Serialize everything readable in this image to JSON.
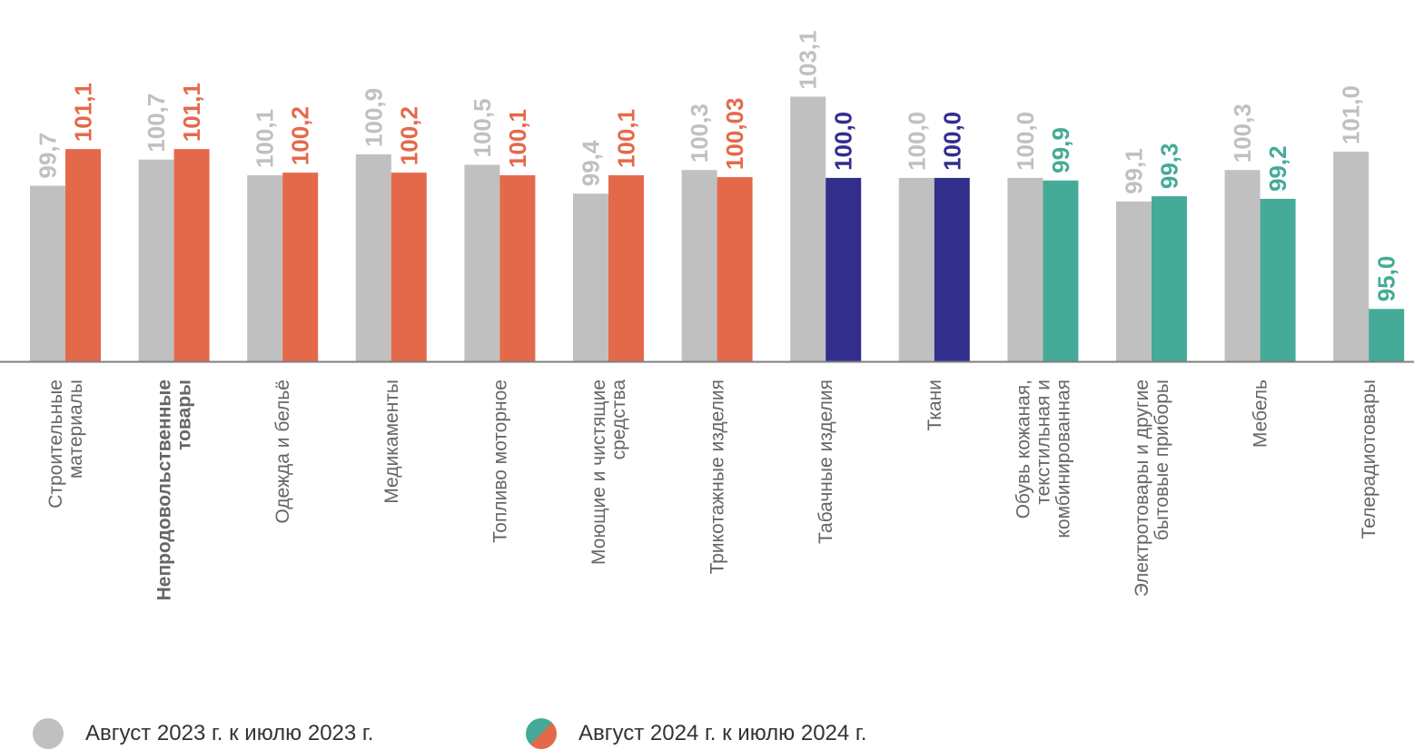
{
  "chart_data": {
    "type": "bar",
    "categories": [
      [
        "Строительные",
        "материалы"
      ],
      [
        "Непродовольственные",
        "товары"
      ],
      [
        "Одежда и бельё"
      ],
      [
        "Медикаменты"
      ],
      [
        "Топливо моторное"
      ],
      [
        "Моющие и чистящие",
        "средства"
      ],
      [
        "Трикотажные изделия"
      ],
      [
        "Табачные изделия"
      ],
      [
        "Ткани"
      ],
      [
        "Обувь кожаная,",
        "текстильная и",
        "комбинированная"
      ],
      [
        "Электротовары и другие",
        "бытовые приборы"
      ],
      [
        "Мебель"
      ],
      [
        "Телерадиотовары"
      ]
    ],
    "bold_category_index": 1,
    "series": [
      {
        "name": "Август 2023 г. к июлю 2023 г.",
        "values": [
          99.7,
          100.7,
          100.1,
          100.9,
          100.5,
          99.4,
          100.3,
          103.1,
          100.0,
          100.0,
          99.1,
          100.3,
          101.0
        ],
        "labels": [
          "99,7",
          "100,7",
          "100,1",
          "100,9",
          "100,5",
          "99,4",
          "100,3",
          "103,1",
          "100,0",
          "100,0",
          "99,1",
          "100,3",
          "101,0"
        ],
        "colors": [
          "#c0c0c0"
        ]
      },
      {
        "name": "Август 2024 г. к июлю 2024 г.",
        "values": [
          101.1,
          101.1,
          100.2,
          100.2,
          100.1,
          100.1,
          100.03,
          100.0,
          100.0,
          99.9,
          99.3,
          99.2,
          95.0
        ],
        "labels": [
          "101,1",
          "101,1",
          "100,2",
          "100,2",
          "100,1",
          "100,1",
          "100,03",
          "100,0",
          "100,0",
          "99,9",
          "99,3",
          "99,2",
          "95,0"
        ],
        "colors": [
          "#e4694a",
          "#e4694a",
          "#e4694a",
          "#e4694a",
          "#e4694a",
          "#e4694a",
          "#e4694a",
          "#322e8c",
          "#322e8c",
          "#45aa97",
          "#45aa97",
          "#45aa97",
          "#45aa97"
        ]
      }
    ],
    "ylim": [
      93.0,
      103.6
    ],
    "grid": false,
    "legend_placement": "bottom-left",
    "colors": {
      "gray": "#c0c0c0",
      "increase": "#e4694a",
      "unchanged": "#322e8c",
      "decrease": "#45aa97",
      "axis": "#7f7f7f",
      "category_text": "#666666"
    }
  },
  "legend": [
    {
      "label": "Август 2023 г. к июлю 2023 г."
    },
    {
      "label": "Август 2024 г. к июлю 2024 г."
    }
  ]
}
